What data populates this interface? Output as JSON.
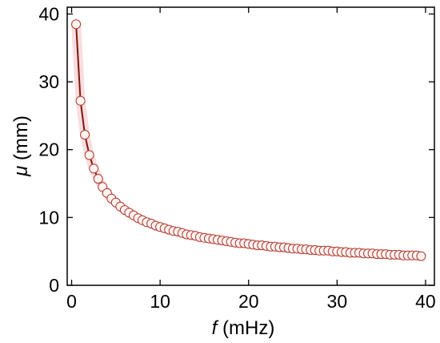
{
  "chart_data": {
    "type": "line",
    "title": "",
    "xlabel": {
      "symbol": "f",
      "unit": " (mHz)"
    },
    "ylabel": {
      "symbol": "μ",
      "unit": " (mm)"
    },
    "xlim": [
      -0.5,
      41
    ],
    "ylim": [
      0,
      41
    ],
    "xticks": [
      0,
      10,
      20,
      30,
      40
    ],
    "yticks": [
      0,
      10,
      20,
      30,
      40
    ],
    "grid": false,
    "legend": "none",
    "colors": {
      "line": "#7a1a08",
      "marker_edge": "#b03a2e",
      "marker_fill": "#fff4f2",
      "glow": "#f6c5cc"
    },
    "series": [
      {
        "x": [
          0.5,
          1.0,
          1.5,
          2.0,
          2.5,
          3.0,
          3.5,
          4.0,
          4.5,
          5.0,
          5.5,
          6.0,
          6.5,
          7.0,
          7.5,
          8.0,
          8.5,
          9.0,
          9.5,
          10.0,
          10.5,
          11.0,
          11.5,
          12.0,
          12.5,
          13.0,
          13.5,
          14.0,
          14.5,
          15.0,
          15.5,
          16.0,
          16.5,
          17.0,
          17.5,
          18.0,
          18.5,
          19.0,
          19.5,
          20.0,
          20.5,
          21.0,
          21.5,
          22.0,
          22.5,
          23.0,
          23.5,
          24.0,
          24.5,
          25.0,
          25.5,
          26.0,
          26.5,
          27.0,
          27.5,
          28.0,
          28.5,
          29.0,
          29.5,
          30.0,
          30.5,
          31.0,
          31.5,
          32.0,
          32.5,
          33.0,
          33.5,
          34.0,
          34.5,
          35.0,
          35.5,
          36.0,
          36.5,
          37.0,
          37.5,
          38.0,
          38.5,
          39.0,
          39.5
        ],
        "y": [
          38.5,
          27.2,
          22.2,
          19.2,
          17.2,
          15.7,
          14.5,
          13.6,
          12.8,
          12.2,
          11.6,
          11.1,
          10.7,
          10.3,
          9.9,
          9.6,
          9.3,
          9.1,
          8.8,
          8.6,
          8.4,
          8.2,
          8.0,
          7.9,
          7.7,
          7.5,
          7.4,
          7.3,
          7.1,
          7.0,
          6.9,
          6.8,
          6.7,
          6.6,
          6.5,
          6.4,
          6.3,
          6.2,
          6.2,
          6.1,
          6.0,
          5.9,
          5.9,
          5.8,
          5.7,
          5.7,
          5.6,
          5.6,
          5.5,
          5.4,
          5.4,
          5.3,
          5.3,
          5.2,
          5.2,
          5.1,
          5.1,
          5.1,
          5.0,
          5.0,
          4.9,
          4.9,
          4.8,
          4.8,
          4.8,
          4.7,
          4.7,
          4.7,
          4.6,
          4.6,
          4.6,
          4.5,
          4.5,
          4.5,
          4.4,
          4.4,
          4.4,
          4.4,
          4.3
        ]
      }
    ]
  }
}
